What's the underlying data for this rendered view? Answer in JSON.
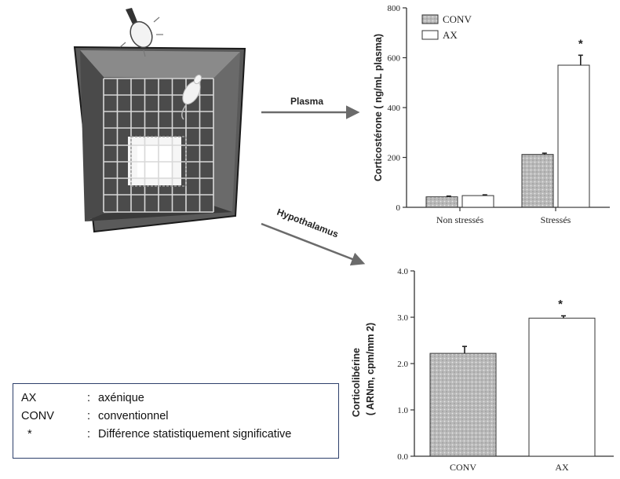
{
  "arrows": {
    "plasma_label": "Plasma",
    "hypothalamus_label": "Hypothalamus"
  },
  "legend": [
    {
      "key": "AX",
      "sep": ":",
      "value": "axénique"
    },
    {
      "key": "CONV",
      "sep": ":",
      "value": "conventionnel"
    },
    {
      "key": "*",
      "sep": ":",
      "value": "Différence statistiquement significative"
    }
  ],
  "colors": {
    "conv_fill": "#b9b9b9",
    "ax_fill": "#ffffff",
    "axis": "#333333"
  },
  "chart_data": [
    {
      "type": "bar",
      "categories": [
        "Non stressés",
        "Stressés"
      ],
      "series": [
        {
          "name": "CONV",
          "values": [
            42,
            212
          ],
          "errors": [
            3,
            5
          ]
        },
        {
          "name": "AX",
          "values": [
            47,
            570
          ],
          "errors": [
            3,
            40
          ]
        }
      ],
      "ylabel": "Corticostérone ( ng/mL plasma)",
      "ylim": [
        0,
        800
      ],
      "yticks": [
        "0",
        "200",
        "400",
        "600",
        "800"
      ],
      "annotations": [
        {
          "category": "Stressés",
          "series": "AX",
          "text": "*"
        }
      ],
      "legend_placement": "top-left"
    },
    {
      "type": "bar",
      "categories": [
        "CONV",
        "AX"
      ],
      "values": [
        2.22,
        2.98
      ],
      "errors": [
        0.15,
        0.05
      ],
      "ylabel_line1": "Corticolibérine",
      "ylabel_line2": "( ARNm, cpm/mm 2)",
      "ylim": [
        0,
        4
      ],
      "yticks": [
        "0.0",
        "1.0",
        "2.0",
        "3.0",
        "4.0"
      ],
      "annotations": [
        {
          "category": "AX",
          "text": "*"
        }
      ]
    }
  ]
}
